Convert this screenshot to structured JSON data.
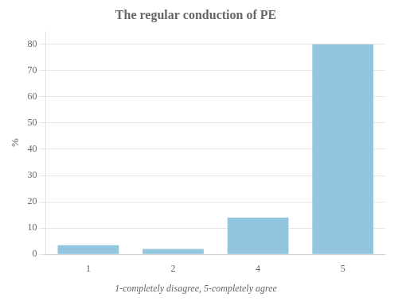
{
  "chart_data": {
    "type": "bar",
    "title": "The regular conduction of PE",
    "subtitle": "1-completely disagree, 5-completely agree",
    "ylabel": "%",
    "categories": [
      "1",
      "2",
      "4",
      "5"
    ],
    "values": [
      3.5,
      2.0,
      14.0,
      80.0
    ],
    "color": "#92C5DE",
    "ylim": [
      0,
      85
    ],
    "yticks": [
      0,
      10,
      20,
      30,
      40,
      50,
      60,
      70,
      80
    ],
    "grid": true
  }
}
